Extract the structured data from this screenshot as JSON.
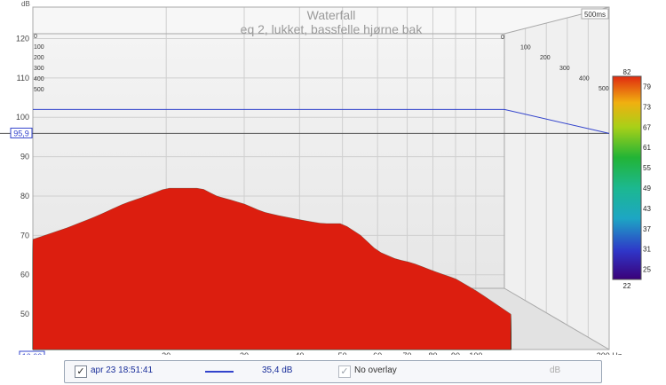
{
  "chart_data": {
    "type": "waterfall",
    "title": "Waterfall",
    "subtitle": "eq 2, lukket, bassfelle hjørne bak",
    "ylabel": "dB",
    "ylim": [
      41,
      128
    ],
    "yticks": [
      50,
      60,
      70,
      80,
      90,
      100,
      110,
      120
    ],
    "xlim": [
      10,
      200
    ],
    "xticks": [
      20,
      30,
      40,
      50,
      60,
      70,
      80,
      90,
      100
    ],
    "x_min_label": "10,00",
    "x_max_label": "200 Hz",
    "z_ticks": [
      0,
      100,
      200,
      300,
      400,
      500
    ],
    "z_max_label": "500ms",
    "reference_line_db": 95.9,
    "reference_line_label": "95,9",
    "upper_line_db": 102.0,
    "colorbar": {
      "min": 22,
      "max": 82,
      "ticks": [
        25,
        31,
        37,
        43,
        49,
        55,
        61,
        67,
        73,
        79
      ]
    },
    "series": [
      {
        "x": [
          10,
          12,
          14,
          16,
          18,
          20,
          22,
          24,
          26,
          28,
          30,
          33,
          36,
          40,
          45,
          50,
          55,
          60,
          66,
          72,
          80,
          90,
          100,
          120
        ],
        "values": [
          69,
          72,
          75,
          78,
          80,
          82,
          82,
          82,
          80,
          79,
          78,
          76,
          75,
          74,
          73,
          73,
          70,
          66,
          64,
          63,
          61,
          59,
          56,
          50
        ]
      }
    ]
  },
  "legend": {
    "measurement_name": "apr 23 18:51:41",
    "measurement_value": "35,4 dB",
    "overlay_label": "No overlay",
    "overlay_unit": "dB"
  }
}
